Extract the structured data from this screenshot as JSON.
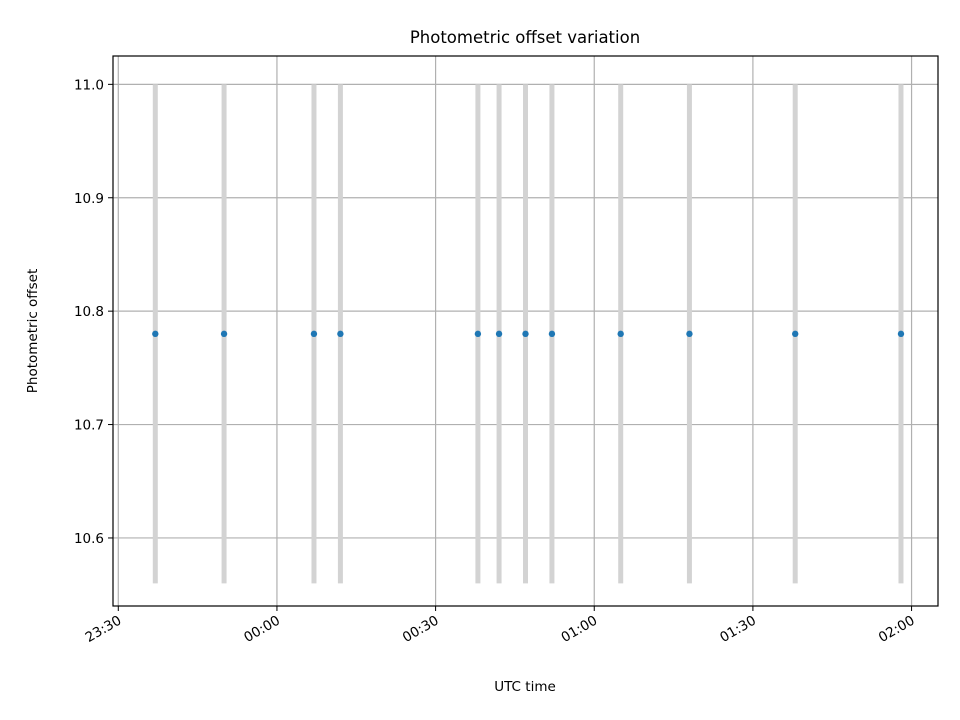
{
  "chart_data": {
    "type": "scatter",
    "title": "Photometric offset variation",
    "xlabel": "UTC time",
    "ylabel": "Photometric offset",
    "x_ticks": [
      "23:30",
      "00:00",
      "00:30",
      "01:00",
      "01:30",
      "02:00"
    ],
    "y_ticks": [
      "10.6",
      "10.7",
      "10.8",
      "10.9",
      "11.0"
    ],
    "xlim": [
      "23:29",
      "02:05"
    ],
    "ylim": [
      10.54,
      11.025
    ],
    "grid": true,
    "legend": "none",
    "marker_color": "#1f77b4",
    "errorbar_color": "#d3d3d3",
    "points": [
      {
        "x": "23:37",
        "y": 10.78,
        "yerr_low": 10.56,
        "yerr_high": 11.0
      },
      {
        "x": "23:50",
        "y": 10.78,
        "yerr_low": 10.56,
        "yerr_high": 11.0
      },
      {
        "x": "00:07",
        "y": 10.78,
        "yerr_low": 10.56,
        "yerr_high": 11.0
      },
      {
        "x": "00:12",
        "y": 10.78,
        "yerr_low": 10.56,
        "yerr_high": 11.0
      },
      {
        "x": "00:38",
        "y": 10.78,
        "yerr_low": 10.56,
        "yerr_high": 11.0
      },
      {
        "x": "00:42",
        "y": 10.78,
        "yerr_low": 10.56,
        "yerr_high": 11.0
      },
      {
        "x": "00:47",
        "y": 10.78,
        "yerr_low": 10.56,
        "yerr_high": 11.0
      },
      {
        "x": "00:52",
        "y": 10.78,
        "yerr_low": 10.56,
        "yerr_high": 11.0
      },
      {
        "x": "01:05",
        "y": 10.78,
        "yerr_low": 10.56,
        "yerr_high": 11.0
      },
      {
        "x": "01:18",
        "y": 10.78,
        "yerr_low": 10.56,
        "yerr_high": 11.0
      },
      {
        "x": "01:38",
        "y": 10.78,
        "yerr_low": 10.56,
        "yerr_high": 11.0
      },
      {
        "x": "01:58",
        "y": 10.78,
        "yerr_low": 10.56,
        "yerr_high": 11.0
      }
    ]
  }
}
